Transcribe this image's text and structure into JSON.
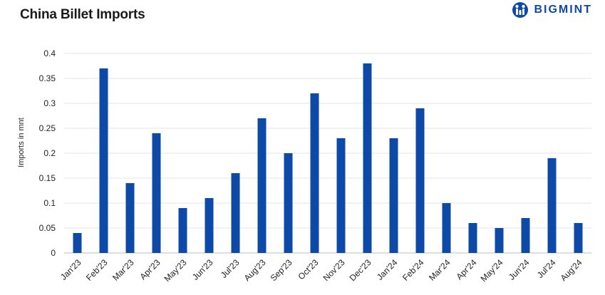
{
  "title": "China Billet Imports",
  "brand": {
    "name": "BIGMINT",
    "color": "#0d4aa8",
    "icon": "bigmint-logo-icon"
  },
  "colors": {
    "bar": "#0d4aa8",
    "grid": "#e6e6e6"
  },
  "chart_data": {
    "type": "bar",
    "title": "China Billet Imports",
    "xlabel": "",
    "ylabel": "Imports in mnt",
    "ylim": [
      0,
      0.4
    ],
    "yticks": [
      "0",
      "0.05",
      "0.1",
      "0.15",
      "0.2",
      "0.25",
      "0.3",
      "0.35",
      "0.4"
    ],
    "grid": true,
    "categories": [
      "Jan'23",
      "Feb'23",
      "Mar'23",
      "Apr'23",
      "May'23",
      "Jun'23",
      "Jul'23",
      "Aug'23",
      "Sep'23",
      "Oct'23",
      "Nov'23",
      "Dec'23",
      "Jan'24",
      "Feb'24",
      "Mar'24",
      "Apr'24",
      "May'24",
      "Jun'24",
      "Jul'24",
      "Aug'24"
    ],
    "values": [
      0.04,
      0.37,
      0.14,
      0.24,
      0.09,
      0.11,
      0.16,
      0.27,
      0.2,
      0.32,
      0.23,
      0.38,
      0.23,
      0.29,
      0.1,
      0.06,
      0.05,
      0.07,
      0.19,
      0.06
    ]
  }
}
